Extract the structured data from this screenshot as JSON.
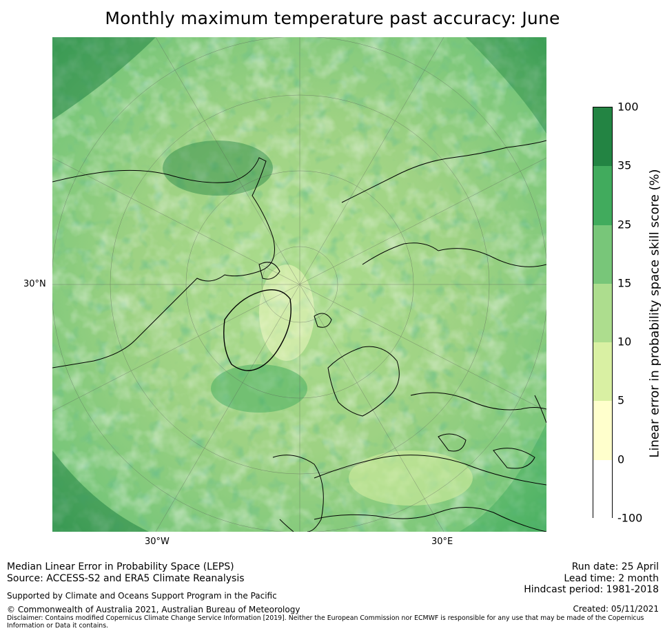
{
  "title": "Monthly maximum temperature past accuracy: June",
  "map": {
    "lat_label": "30°N",
    "lon_labels": [
      "30°W",
      "30°E"
    ],
    "fill_colors": [
      "#ffffff",
      "#ffffcc",
      "#d9f0a3",
      "#addd8e",
      "#78c679",
      "#41ab5d",
      "#238443"
    ]
  },
  "colorbar": {
    "label": "Linear error in probability space skill score (%)",
    "ticks": [
      "100",
      "35",
      "25",
      "15",
      "10",
      "5",
      "0",
      "-100"
    ],
    "colors": [
      "#238443",
      "#41ab5d",
      "#78c679",
      "#addd8e",
      "#d9f0a3",
      "#ffffcc",
      "#ffffff"
    ]
  },
  "footer": {
    "metric": "Median Linear Error in Probability Space (LEPS)",
    "source": "Source: ACCESS-S2 and ERA5 Climate Reanalysis",
    "support": "Supported by Climate and Oceans Support Program in the Pacific",
    "copyright": "© Commonwealth of Australia 2021, Australian Bureau of Meteorology",
    "disclaimer": "Disclaimer: Contains modified Copernicus Climate Change Service Information [2019]. Neither the European Commission nor ECMWF is responsible for any use that may be made of the Copernicus Information or Data it contains.",
    "run_date": "Run date: 25 April",
    "lead_time": "Lead time: 2 month",
    "hindcast": "Hindcast period: 1981-2018",
    "created": "Created: 05/11/2021"
  }
}
